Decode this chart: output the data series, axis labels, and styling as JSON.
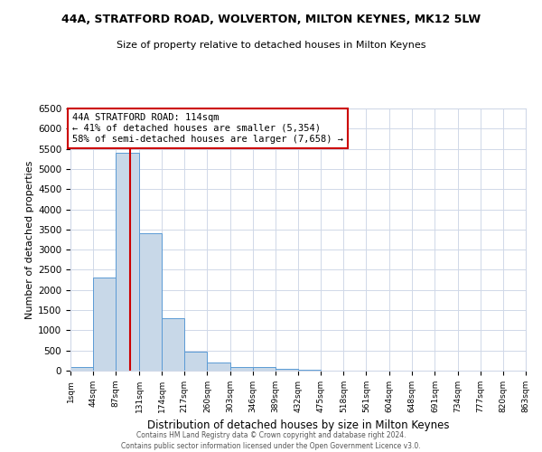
{
  "title": "44A, STRATFORD ROAD, WOLVERTON, MILTON KEYNES, MK12 5LW",
  "subtitle": "Size of property relative to detached houses in Milton Keynes",
  "xlabel": "Distribution of detached houses by size in Milton Keynes",
  "ylabel": "Number of detached properties",
  "footnote": "Contains HM Land Registry data © Crown copyright and database right 2024.\nContains public sector information licensed under the Open Government Licence v3.0.",
  "bin_edges": [
    1,
    44,
    87,
    131,
    174,
    217,
    260,
    303,
    346,
    389,
    432,
    475,
    518,
    561,
    604,
    648,
    691,
    734,
    777,
    820,
    863
  ],
  "bar_heights": [
    80,
    2300,
    5400,
    3400,
    1300,
    480,
    200,
    100,
    80,
    50,
    30,
    0,
    0,
    0,
    0,
    0,
    0,
    0,
    0,
    0
  ],
  "bar_color": "#c8d8e8",
  "bar_edge_color": "#5b9bd5",
  "property_size": 114,
  "vline_color": "#cc0000",
  "annotation_text": "44A STRATFORD ROAD: 114sqm\n← 41% of detached houses are smaller (5,354)\n58% of semi-detached houses are larger (7,658) →",
  "annotation_box_color": "#cc0000",
  "ylim": [
    0,
    6500
  ],
  "yticks": [
    0,
    500,
    1000,
    1500,
    2000,
    2500,
    3000,
    3500,
    4000,
    4500,
    5000,
    5500,
    6000,
    6500
  ],
  "tick_labels": [
    "1sqm",
    "44sqm",
    "87sqm",
    "131sqm",
    "174sqm",
    "217sqm",
    "260sqm",
    "303sqm",
    "346sqm",
    "389sqm",
    "432sqm",
    "475sqm",
    "518sqm",
    "561sqm",
    "604sqm",
    "648sqm",
    "691sqm",
    "734sqm",
    "777sqm",
    "820sqm",
    "863sqm"
  ],
  "grid_color": "#d0d8e8",
  "background_color": "#ffffff"
}
